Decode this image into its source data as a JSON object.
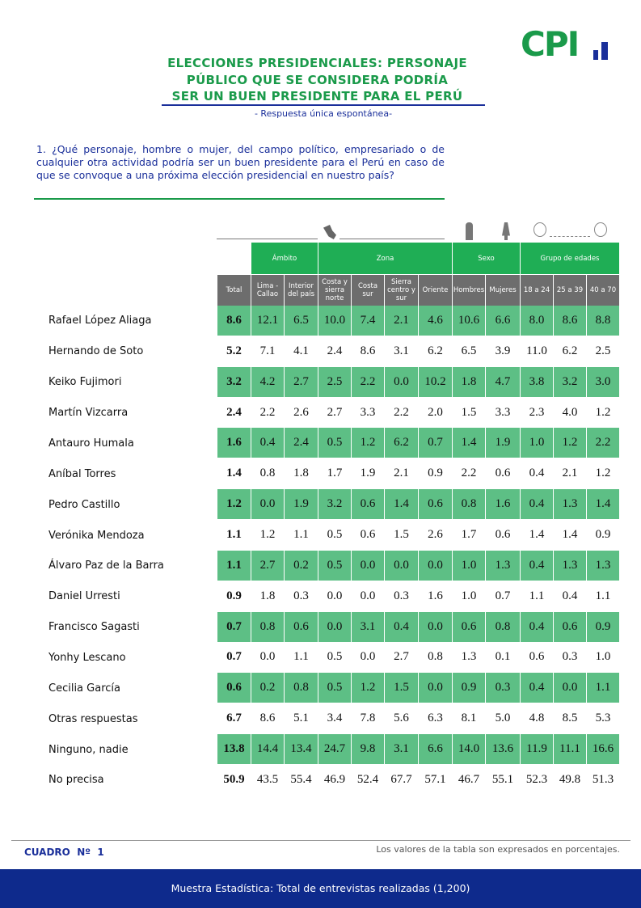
{
  "header": {
    "logo": "CPI",
    "title": [
      "ELECCIONES PRESIDENCIALES: PERSONAJE",
      "PÚBLICO QUE SE CONSIDERA PODRÍA",
      "SER UN BUEN PRESIDENTE PARA EL PERÚ"
    ],
    "subtitle": "- Respuesta única espontánea-"
  },
  "question": "1. ¿Qué personaje, hombre o mujer, del campo político, empresariado o de cualquier otra actividad podría ser un buen presidente para el Perú en caso de que se convoque a una próxima elección presidencial en nuestro país?",
  "table": {
    "groups": [
      "Ámbito",
      "Zona",
      "Sexo",
      "Grupo de edades"
    ],
    "columns": [
      "Total",
      "Lima - Callao",
      "Interior del país",
      "Costa y sierra norte",
      "Costa sur",
      "Sierra centro y sur",
      "Oriente",
      "Hombres",
      "Mujeres",
      "18 a 24",
      "25 a 39",
      "40 a 70"
    ],
    "rows": [
      {
        "label": "Rafael López Aliaga",
        "values": [
          "8.6",
          "12.1",
          "6.5",
          "10.0",
          "7.4",
          "2.1",
          "4.6",
          "10.6",
          "6.6",
          "8.0",
          "8.6",
          "8.8"
        ]
      },
      {
        "label": "Hernando de Soto",
        "values": [
          "5.2",
          "7.1",
          "4.1",
          "2.4",
          "8.6",
          "3.1",
          "6.2",
          "6.5",
          "3.9",
          "11.0",
          "6.2",
          "2.5"
        ]
      },
      {
        "label": "Keiko Fujimori",
        "values": [
          "3.2",
          "4.2",
          "2.7",
          "2.5",
          "2.2",
          "0.0",
          "10.2",
          "1.8",
          "4.7",
          "3.8",
          "3.2",
          "3.0"
        ]
      },
      {
        "label": "Martín Vizcarra",
        "values": [
          "2.4",
          "2.2",
          "2.6",
          "2.7",
          "3.3",
          "2.2",
          "2.0",
          "1.5",
          "3.3",
          "2.3",
          "4.0",
          "1.2"
        ]
      },
      {
        "label": "Antauro Humala",
        "values": [
          "1.6",
          "0.4",
          "2.4",
          "0.5",
          "1.2",
          "6.2",
          "0.7",
          "1.4",
          "1.9",
          "1.0",
          "1.2",
          "2.2"
        ]
      },
      {
        "label": "Aníbal Torres",
        "values": [
          "1.4",
          "0.8",
          "1.8",
          "1.7",
          "1.9",
          "2.1",
          "0.9",
          "2.2",
          "0.6",
          "0.4",
          "2.1",
          "1.2"
        ]
      },
      {
        "label": "Pedro Castillo",
        "values": [
          "1.2",
          "0.0",
          "1.9",
          "3.2",
          "0.6",
          "1.4",
          "0.6",
          "0.8",
          "1.6",
          "0.4",
          "1.3",
          "1.4"
        ]
      },
      {
        "label": "Verónika Mendoza",
        "values": [
          "1.1",
          "1.2",
          "1.1",
          "0.5",
          "0.6",
          "1.5",
          "2.6",
          "1.7",
          "0.6",
          "1.4",
          "1.4",
          "0.9"
        ]
      },
      {
        "label": "Álvaro Paz de la Barra",
        "values": [
          "1.1",
          "2.7",
          "0.2",
          "0.5",
          "0.0",
          "0.0",
          "0.0",
          "1.0",
          "1.3",
          "0.4",
          "1.3",
          "1.3"
        ]
      },
      {
        "label": "Daniel Urresti",
        "values": [
          "0.9",
          "1.8",
          "0.3",
          "0.0",
          "0.0",
          "0.3",
          "1.6",
          "1.0",
          "0.7",
          "1.1",
          "0.4",
          "1.1"
        ]
      },
      {
        "label": "Francisco Sagasti",
        "values": [
          "0.7",
          "0.8",
          "0.6",
          "0.0",
          "3.1",
          "0.4",
          "0.0",
          "0.6",
          "0.8",
          "0.4",
          "0.6",
          "0.9"
        ]
      },
      {
        "label": "Yonhy Lescano",
        "values": [
          "0.7",
          "0.0",
          "1.1",
          "0.5",
          "0.0",
          "2.7",
          "0.8",
          "1.3",
          "0.1",
          "0.6",
          "0.3",
          "1.0"
        ]
      },
      {
        "label": "Cecilia García",
        "values": [
          "0.6",
          "0.2",
          "0.8",
          "0.5",
          "1.2",
          "1.5",
          "0.0",
          "0.9",
          "0.3",
          "0.4",
          "0.0",
          "1.1"
        ]
      },
      {
        "label": "Otras respuestas",
        "values": [
          "6.7",
          "8.6",
          "5.1",
          "3.4",
          "7.8",
          "5.6",
          "6.3",
          "8.1",
          "5.0",
          "4.8",
          "8.5",
          "5.3"
        ]
      },
      {
        "label": "Ninguno, nadie",
        "values": [
          "13.8",
          "14.4",
          "13.4",
          "24.7",
          "9.8",
          "3.1",
          "6.6",
          "14.0",
          "13.6",
          "11.9",
          "11.1",
          "16.6"
        ]
      },
      {
        "label": "No precisa",
        "values": [
          "50.9",
          "43.5",
          "55.4",
          "46.9",
          "52.4",
          "67.7",
          "57.1",
          "46.7",
          "55.1",
          "52.3",
          "49.8",
          "51.3"
        ]
      }
    ]
  },
  "footer": {
    "table_id": "CUADRO  Nº  1",
    "note": "Los valores de la tabla son expresados en porcentajes.",
    "sample": "Muestra Estadística: Total de entrevistas realizadas (1,200)"
  }
}
